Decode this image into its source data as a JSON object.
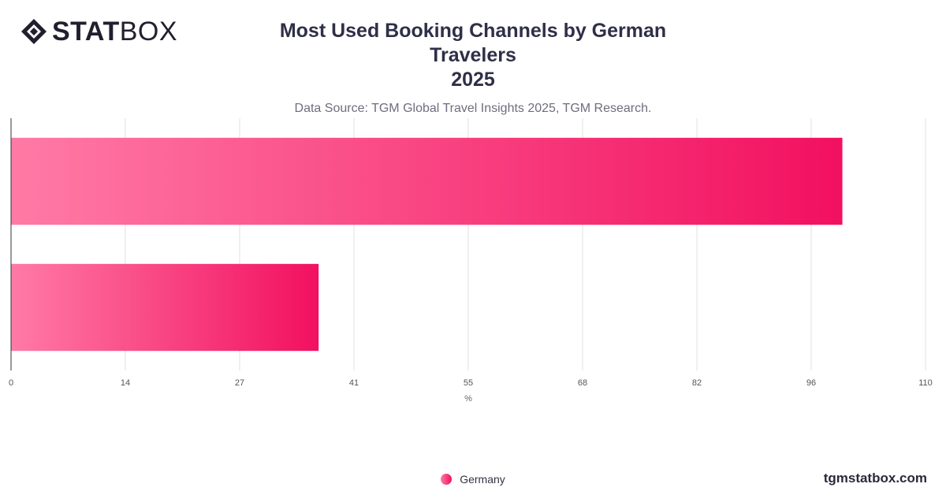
{
  "brand": {
    "logo_bold": "STAT",
    "logo_light": "BOX",
    "footer_url": "tgmstatbox.com"
  },
  "header": {
    "title_line1": "Most Used Booking Channels by German Travelers",
    "title_line2": "2025",
    "subtitle": "Data Source: TGM Global Travel Insights 2025, TGM Research."
  },
  "chart_data": {
    "type": "bar",
    "orientation": "horizontal",
    "categories": [
      "",
      ""
    ],
    "series": [
      {
        "name": "Germany",
        "values": [
          100,
          37
        ]
      }
    ],
    "xlabel": "%",
    "ylabel": "",
    "xlim": [
      0,
      110
    ],
    "x_ticks": [
      "0",
      "14",
      "27",
      "41",
      "55",
      "68",
      "82",
      "96",
      "110"
    ],
    "grid": true,
    "legend_position": "bottom",
    "colors": {
      "bar_start": "#ff7aa6",
      "bar_end": "#f2105f"
    }
  }
}
